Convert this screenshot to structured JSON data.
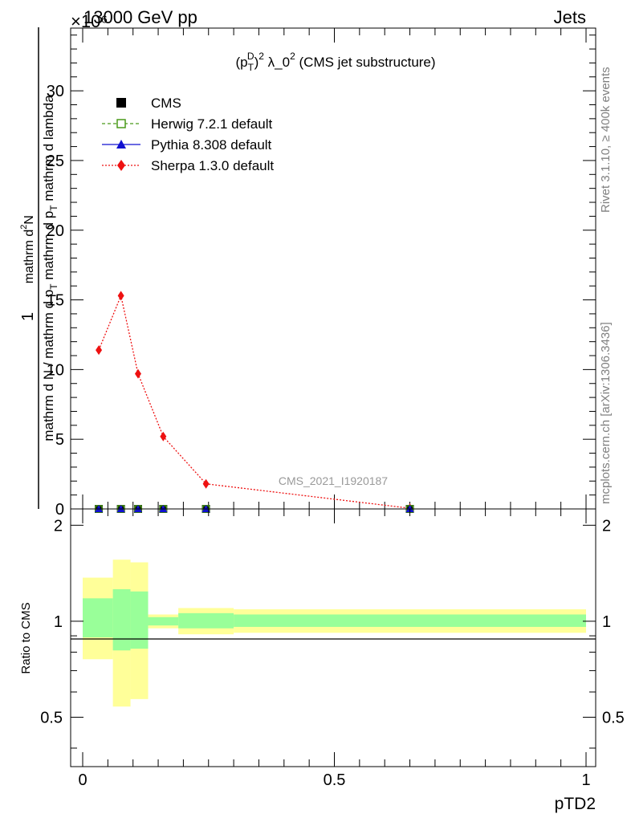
{
  "header": {
    "energy": "13000 GeV pp",
    "process": "Jets",
    "exponent": "×10⁶"
  },
  "side_texts": {
    "rivet": "Rivet 3.1.10, ≥ 400k events",
    "mcplots": "mcplots.cern.ch [arXiv:1306.3436]"
  },
  "watermark": "CMS_2021_I1920187",
  "main_title": "(pTD)² λ_0² (CMS jet substructure)",
  "colors": {
    "cms": "#000000",
    "herwig": "#4a9a1a",
    "pythia": "#1010d0",
    "sherpa": "#ee1111",
    "band_outer": "#ffff99",
    "band_inner": "#99ff99"
  },
  "chart_data": [
    {
      "type": "line",
      "title": "(pTD)² λ_0² (CMS jet substructure)",
      "ylabel": "1 / mathrm d N / mathrm d p_T mathrm d p_T mathrm d lambda  mathrm d²N",
      "y_multiplier": "×10⁶",
      "xlim": [
        0,
        1
      ],
      "ylim": [
        0,
        34.5
      ],
      "yticks": [
        0,
        5,
        10,
        15,
        20,
        25,
        30
      ],
      "legend_position": "top-left",
      "series": [
        {
          "name": "CMS",
          "marker": "square",
          "x": [
            0.032,
            0.076,
            0.11,
            0.16,
            0.245,
            0.65
          ],
          "y": [
            0,
            0,
            0,
            0,
            0,
            0
          ]
        },
        {
          "name": "Herwig 7.2.1 default",
          "marker": "open-square",
          "x": [
            0.032,
            0.076,
            0.11,
            0.16,
            0.245,
            0.65
          ],
          "y": [
            0,
            0,
            0,
            0,
            0,
            0
          ]
        },
        {
          "name": "Pythia 8.308 default",
          "marker": "triangle",
          "x": [
            0.032,
            0.076,
            0.11,
            0.16,
            0.245,
            0.65
          ],
          "y": [
            0,
            0,
            0,
            0,
            0,
            0
          ]
        },
        {
          "name": "Sherpa 1.3.0 default",
          "marker": "diamond",
          "x": [
            0.032,
            0.076,
            0.11,
            0.16,
            0.245,
            0.65
          ],
          "y": [
            11.4,
            15.3,
            9.7,
            5.2,
            1.8,
            0.05
          ]
        }
      ]
    },
    {
      "type": "area",
      "ylabel": "Ratio to CMS",
      "xlabel": "pTD2",
      "xlim": [
        0,
        1
      ],
      "ylim": [
        0.35,
        2.25
      ],
      "xticks": [
        "0",
        "0.5",
        "1"
      ],
      "yticks": [
        "0.5",
        "1",
        "2"
      ],
      "bins": [
        {
          "x0": 0.0,
          "x1": 0.06,
          "outer": [
            0.76,
            1.37
          ],
          "inner": [
            0.89,
            1.18
          ]
        },
        {
          "x0": 0.06,
          "x1": 0.095,
          "outer": [
            0.54,
            1.56
          ],
          "inner": [
            0.81,
            1.26
          ]
        },
        {
          "x0": 0.095,
          "x1": 0.13,
          "outer": [
            0.57,
            1.53
          ],
          "inner": [
            0.82,
            1.24
          ]
        },
        {
          "x0": 0.13,
          "x1": 0.19,
          "outer": [
            0.95,
            1.05
          ],
          "inner": [
            0.97,
            1.03
          ]
        },
        {
          "x0": 0.19,
          "x1": 0.3,
          "outer": [
            0.91,
            1.1
          ],
          "inner": [
            0.95,
            1.06
          ]
        },
        {
          "x0": 0.3,
          "x1": 1.0,
          "outer": [
            0.92,
            1.09
          ],
          "inner": [
            0.96,
            1.05
          ]
        }
      ]
    }
  ]
}
